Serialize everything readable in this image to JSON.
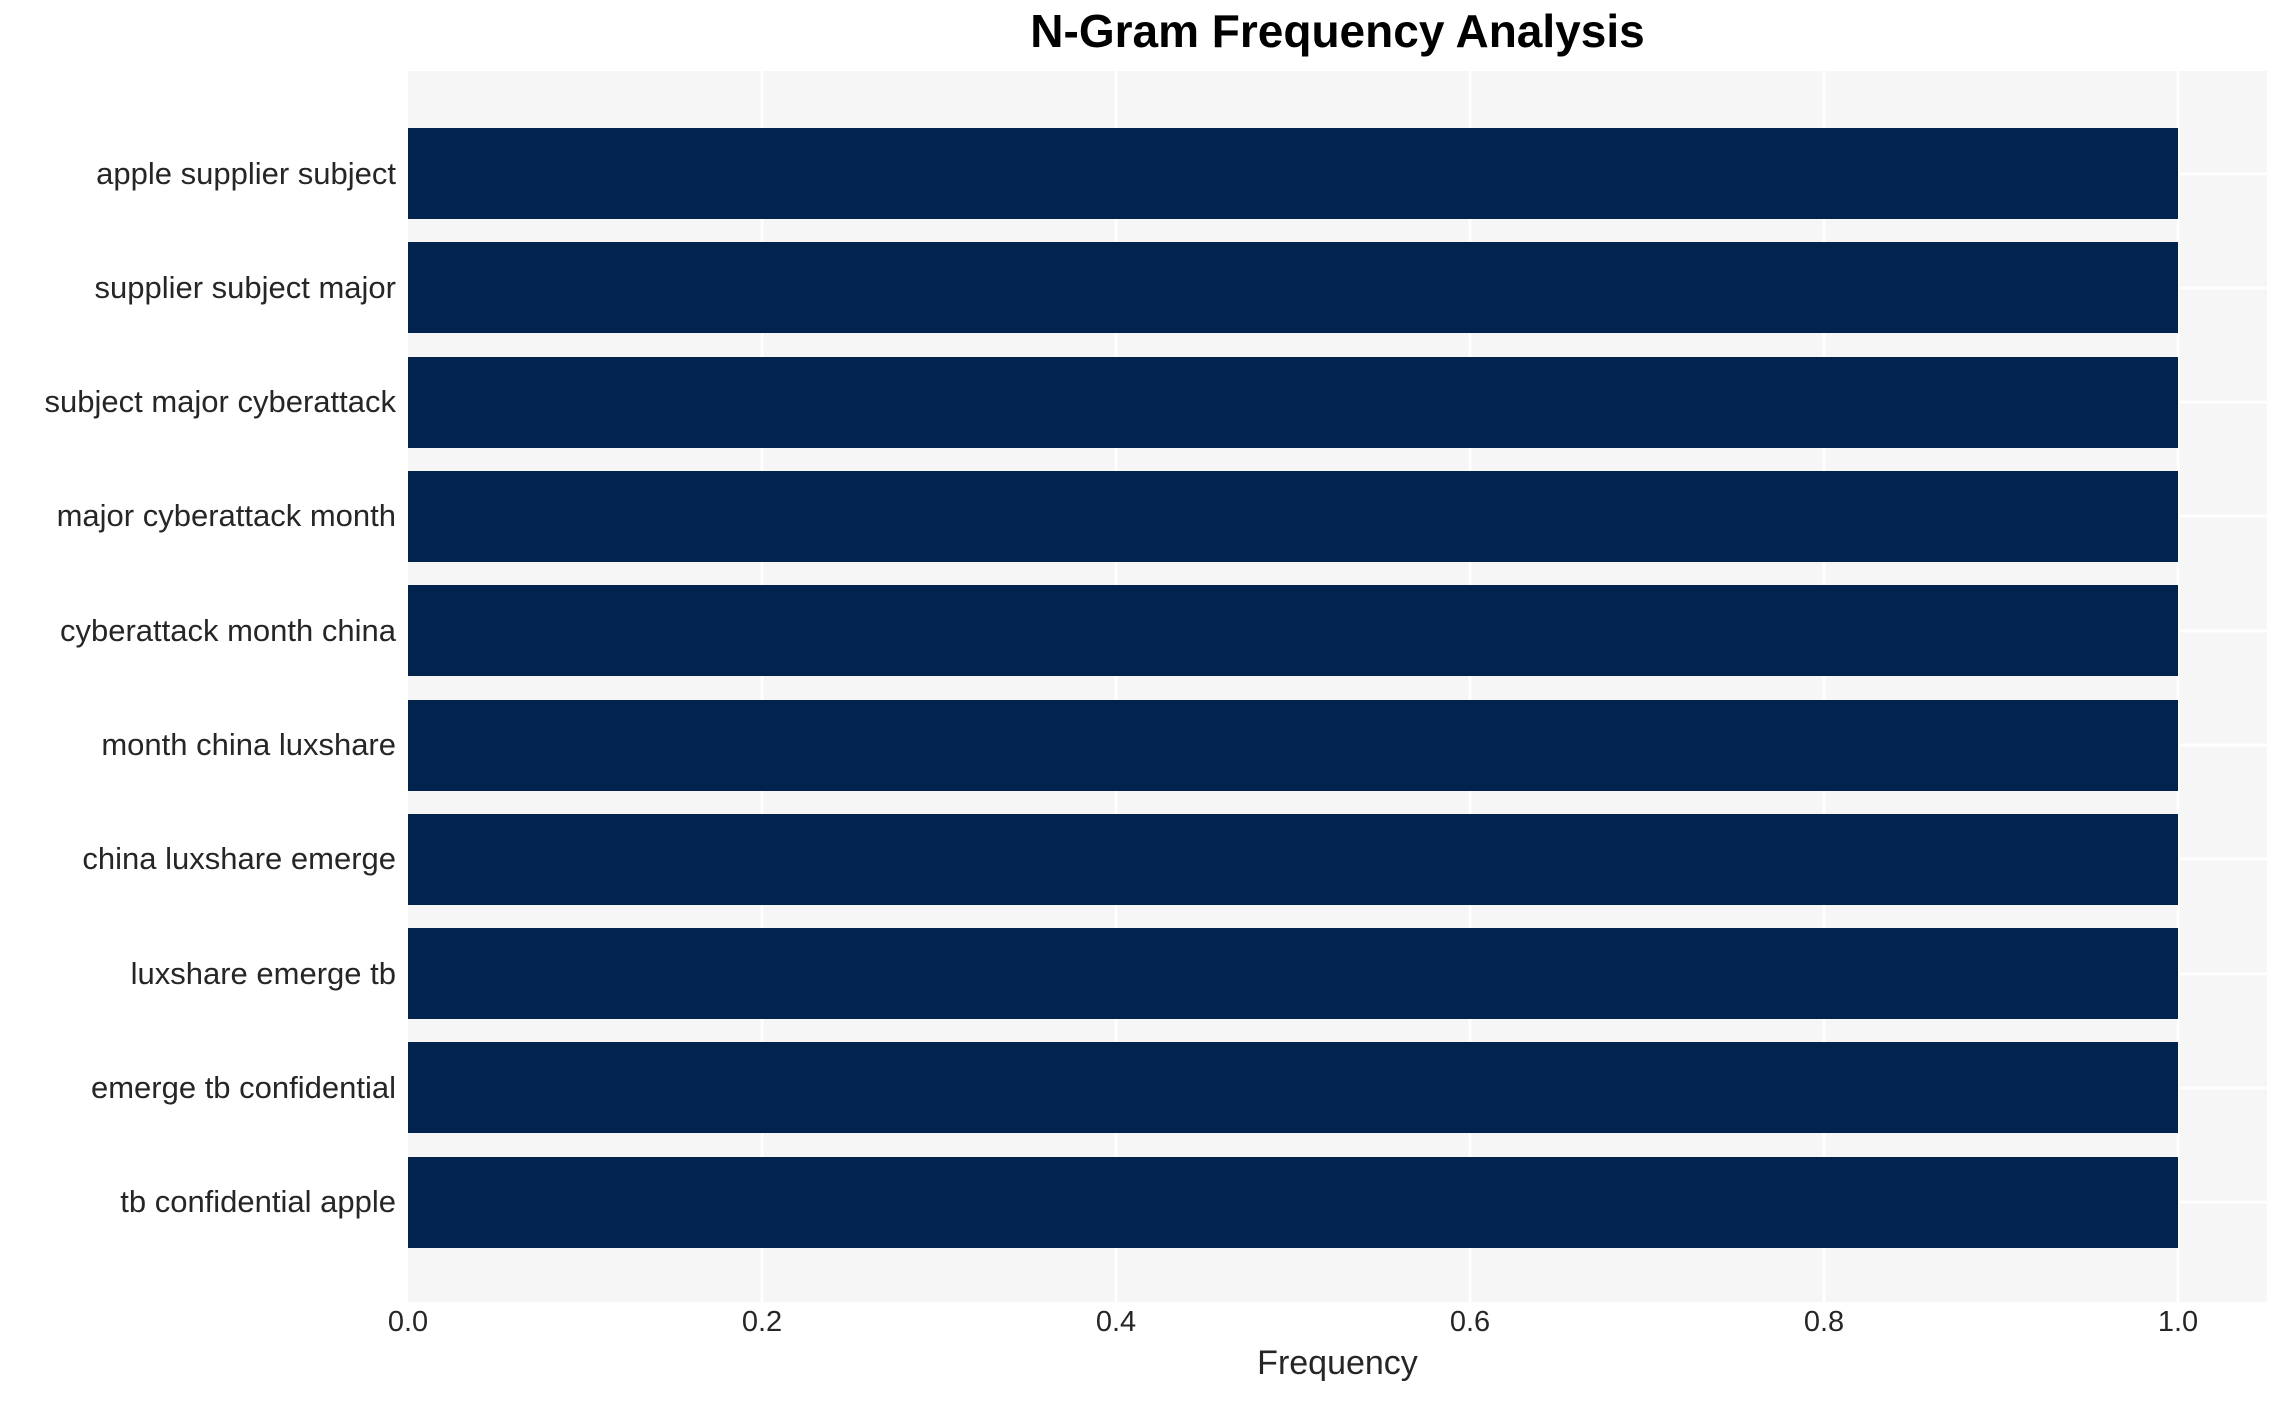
{
  "chart_data": {
    "type": "bar",
    "orientation": "horizontal",
    "title": "N-Gram Frequency Analysis",
    "xlabel": "Frequency",
    "ylabel": "",
    "categories": [
      "apple supplier subject",
      "supplier subject major",
      "subject major cyberattack",
      "major cyberattack month",
      "cyberattack month china",
      "month china luxshare",
      "china luxshare emerge",
      "luxshare emerge tb",
      "emerge tb confidential",
      "tb confidential apple"
    ],
    "values": [
      1.0,
      1.0,
      1.0,
      1.0,
      1.0,
      1.0,
      1.0,
      1.0,
      1.0,
      1.0
    ],
    "xtick_labels": [
      "0.0",
      "0.2",
      "0.4",
      "0.6",
      "0.8",
      "1.0"
    ],
    "xtick_values": [
      0.0,
      0.2,
      0.4,
      0.6,
      0.8,
      1.0
    ],
    "xlim": [
      0,
      1.05
    ],
    "grid": "on",
    "legend": "none",
    "colors": {
      "bar": "#02234d",
      "plot_background": "#f6f6f6",
      "gridline": "#ffffff",
      "figure_background": "#ffffff",
      "tick_text": "#262626",
      "title_text": "#000000"
    }
  }
}
